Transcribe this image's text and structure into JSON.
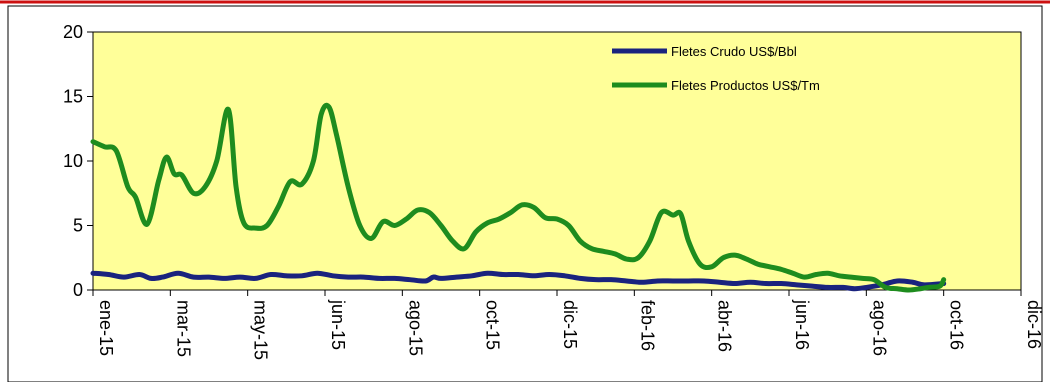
{
  "chart_data": {
    "type": "line",
    "title": "",
    "xlabel": "",
    "ylabel": "",
    "ylim": [
      0,
      20
    ],
    "y_ticks": [
      0,
      5,
      10,
      15,
      20
    ],
    "x_tick_labels": [
      "ene-15",
      "mar-15",
      "may-15",
      "jun-15",
      "ago-15",
      "oct-15",
      "dic-15",
      "feb-16",
      "abr-16",
      "jun-16",
      "ago-16",
      "oct-16",
      "dic-16"
    ],
    "x_range": [
      0,
      24
    ],
    "grid": false,
    "plot_background": "#ffff99",
    "legend_position": "top-right",
    "series": [
      {
        "name": "Fletes Crudo US$/Bbl",
        "color": "#1a237e",
        "points": [
          [
            0.0,
            1.3
          ],
          [
            0.4,
            1.2
          ],
          [
            0.8,
            1.0
          ],
          [
            1.2,
            1.2
          ],
          [
            1.5,
            0.9
          ],
          [
            1.8,
            1.0
          ],
          [
            2.2,
            1.3
          ],
          [
            2.6,
            1.0
          ],
          [
            3.0,
            1.0
          ],
          [
            3.4,
            0.9
          ],
          [
            3.8,
            1.0
          ],
          [
            4.2,
            0.9
          ],
          [
            4.6,
            1.2
          ],
          [
            5.0,
            1.1
          ],
          [
            5.4,
            1.1
          ],
          [
            5.8,
            1.3
          ],
          [
            6.2,
            1.1
          ],
          [
            6.6,
            1.0
          ],
          [
            7.0,
            1.0
          ],
          [
            7.4,
            0.9
          ],
          [
            7.8,
            0.9
          ],
          [
            8.2,
            0.8
          ],
          [
            8.6,
            0.7
          ],
          [
            8.8,
            1.0
          ],
          [
            9.0,
            0.9
          ],
          [
            9.4,
            1.0
          ],
          [
            9.8,
            1.1
          ],
          [
            10.2,
            1.3
          ],
          [
            10.6,
            1.2
          ],
          [
            11.0,
            1.2
          ],
          [
            11.4,
            1.1
          ],
          [
            11.8,
            1.2
          ],
          [
            12.2,
            1.1
          ],
          [
            12.6,
            0.9
          ],
          [
            13.0,
            0.8
          ],
          [
            13.4,
            0.8
          ],
          [
            13.8,
            0.7
          ],
          [
            14.2,
            0.6
          ],
          [
            14.6,
            0.7
          ],
          [
            15.0,
            0.7
          ],
          [
            15.4,
            0.7
          ],
          [
            15.8,
            0.7
          ],
          [
            16.2,
            0.6
          ],
          [
            16.6,
            0.5
          ],
          [
            17.0,
            0.6
          ],
          [
            17.4,
            0.5
          ],
          [
            17.8,
            0.5
          ],
          [
            18.2,
            0.4
          ],
          [
            18.6,
            0.3
          ],
          [
            19.0,
            0.2
          ],
          [
            19.4,
            0.2
          ],
          [
            19.7,
            0.1
          ],
          [
            20.0,
            0.2
          ],
          [
            20.4,
            0.4
          ],
          [
            20.8,
            0.7
          ],
          [
            21.2,
            0.6
          ],
          [
            21.5,
            0.4
          ],
          [
            22.0,
            0.5
          ]
        ]
      },
      {
        "name": "Fletes Productos US$/Tm",
        "color": "#1e8c1e",
        "points": [
          [
            0.0,
            11.5
          ],
          [
            0.3,
            11.1
          ],
          [
            0.6,
            10.8
          ],
          [
            0.9,
            8.0
          ],
          [
            1.1,
            7.2
          ],
          [
            1.4,
            5.1
          ],
          [
            1.7,
            8.5
          ],
          [
            1.9,
            10.3
          ],
          [
            2.1,
            9.0
          ],
          [
            2.3,
            8.9
          ],
          [
            2.6,
            7.5
          ],
          [
            2.9,
            8.0
          ],
          [
            3.2,
            10.0
          ],
          [
            3.5,
            14.0
          ],
          [
            3.7,
            8.0
          ],
          [
            3.9,
            5.2
          ],
          [
            4.2,
            4.8
          ],
          [
            4.5,
            5.0
          ],
          [
            4.8,
            6.5
          ],
          [
            5.1,
            8.4
          ],
          [
            5.4,
            8.2
          ],
          [
            5.7,
            10.0
          ],
          [
            5.9,
            13.6
          ],
          [
            6.1,
            14.2
          ],
          [
            6.3,
            12.0
          ],
          [
            6.6,
            8.0
          ],
          [
            6.9,
            5.0
          ],
          [
            7.2,
            4.0
          ],
          [
            7.5,
            5.3
          ],
          [
            7.8,
            5.0
          ],
          [
            8.1,
            5.5
          ],
          [
            8.4,
            6.2
          ],
          [
            8.7,
            6.0
          ],
          [
            9.0,
            5.0
          ],
          [
            9.3,
            3.8
          ],
          [
            9.6,
            3.2
          ],
          [
            9.9,
            4.5
          ],
          [
            10.2,
            5.2
          ],
          [
            10.5,
            5.5
          ],
          [
            10.8,
            6.0
          ],
          [
            11.1,
            6.6
          ],
          [
            11.4,
            6.4
          ],
          [
            11.7,
            5.6
          ],
          [
            12.0,
            5.5
          ],
          [
            12.3,
            5.0
          ],
          [
            12.6,
            3.8
          ],
          [
            12.9,
            3.2
          ],
          [
            13.2,
            3.0
          ],
          [
            13.5,
            2.8
          ],
          [
            13.8,
            2.4
          ],
          [
            14.1,
            2.5
          ],
          [
            14.4,
            3.8
          ],
          [
            14.7,
            6.0
          ],
          [
            15.0,
            5.8
          ],
          [
            15.2,
            5.9
          ],
          [
            15.4,
            3.8
          ],
          [
            15.7,
            2.0
          ],
          [
            16.0,
            1.8
          ],
          [
            16.3,
            2.5
          ],
          [
            16.6,
            2.7
          ],
          [
            16.9,
            2.4
          ],
          [
            17.2,
            2.0
          ],
          [
            17.5,
            1.8
          ],
          [
            17.8,
            1.6
          ],
          [
            18.1,
            1.3
          ],
          [
            18.4,
            1.0
          ],
          [
            18.7,
            1.2
          ],
          [
            19.0,
            1.3
          ],
          [
            19.3,
            1.1
          ],
          [
            19.6,
            1.0
          ],
          [
            19.9,
            0.9
          ],
          [
            20.2,
            0.8
          ],
          [
            20.5,
            0.2
          ],
          [
            20.8,
            0.1
          ],
          [
            21.1,
            0.0
          ],
          [
            21.4,
            0.1
          ],
          [
            21.6,
            0.2
          ],
          [
            21.9,
            0.3
          ],
          [
            22.0,
            0.8
          ]
        ]
      }
    ]
  }
}
